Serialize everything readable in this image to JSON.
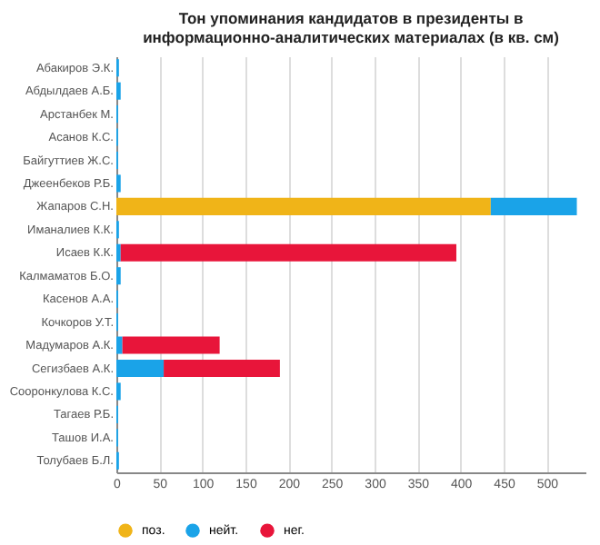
{
  "chart_data": {
    "type": "bar",
    "orientation": "horizontal",
    "stacked": true,
    "title": "Тон упоминания кандидатов в президенты в информационно-аналитических материалах (в кв. см)",
    "categories": [
      "Абакиров Э.К.",
      "Абдылдаев А.Б.",
      "Арстанбек М.",
      "Асанов К.С.",
      "Байгуттиев Ж.С.",
      "Джеенбеков Р.Б.",
      "Жапаров С.Н.",
      "Иманалиев К.К.",
      "Исаев К.К.",
      "Калмаматов Б.О.",
      "Касенов А.А.",
      "Кочкоров У.Т.",
      "Мадумаров А.К.",
      "Сегизбаев А.К.",
      "Сооронкулова К.С.",
      "Тагаев Р.Б.",
      "Ташов И.А.",
      "Толубаев Б.Л."
    ],
    "series": [
      {
        "name": "поз.",
        "color": "#f0b418",
        "values": [
          0,
          0,
          0,
          0,
          0,
          0,
          435,
          0,
          0,
          0,
          0,
          0,
          0,
          0,
          0,
          0,
          0,
          0
        ]
      },
      {
        "name": "нейт.",
        "color": "#1aa3e8",
        "values": [
          3,
          5,
          2,
          2,
          2,
          5,
          100,
          3,
          5,
          5,
          2,
          2,
          7,
          55,
          5,
          2,
          2,
          3
        ]
      },
      {
        "name": "нег.",
        "color": "#e8153a",
        "values": [
          0,
          0,
          0,
          0,
          0,
          0,
          0,
          0,
          390,
          0,
          0,
          0,
          113,
          135,
          0,
          0,
          0,
          0
        ]
      }
    ],
    "xlim": [
      0,
      545
    ],
    "xticks": [
      0,
      50,
      100,
      150,
      200,
      250,
      300,
      350,
      400,
      450,
      500
    ],
    "grid": "x",
    "legend": "bottom"
  }
}
